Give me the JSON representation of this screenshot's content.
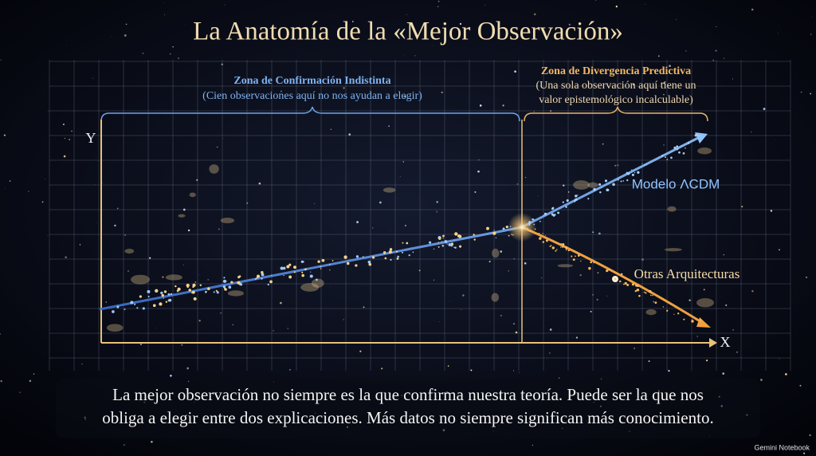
{
  "title": "La Anatomía de la «Mejor Observación»",
  "zones": [
    {
      "title": "Zona de Confirmación Indistinta",
      "subtitle": [
        "(Cien observaciones aquí no nos ayudan a elegir)"
      ]
    },
    {
      "title": "Zona de Divergencia Predictiva",
      "subtitle": [
        "(Una sola observación aquí tiene un",
        "valor epistemológico incalculable)"
      ]
    }
  ],
  "axes": {
    "y": "Y",
    "x": "X"
  },
  "lines": [
    {
      "label": "Modelo ΛCDM"
    },
    {
      "label": "Otras Arquitecturas"
    }
  ],
  "caption": [
    "La mejor observación no siempre es la que confirma nuestra teoría. Puede ser la que nos",
    "obliga a elegir entre dos explicaciones. Más datos no siempre significan más conocimiento."
  ],
  "watermark": "Gemini Notebook"
}
